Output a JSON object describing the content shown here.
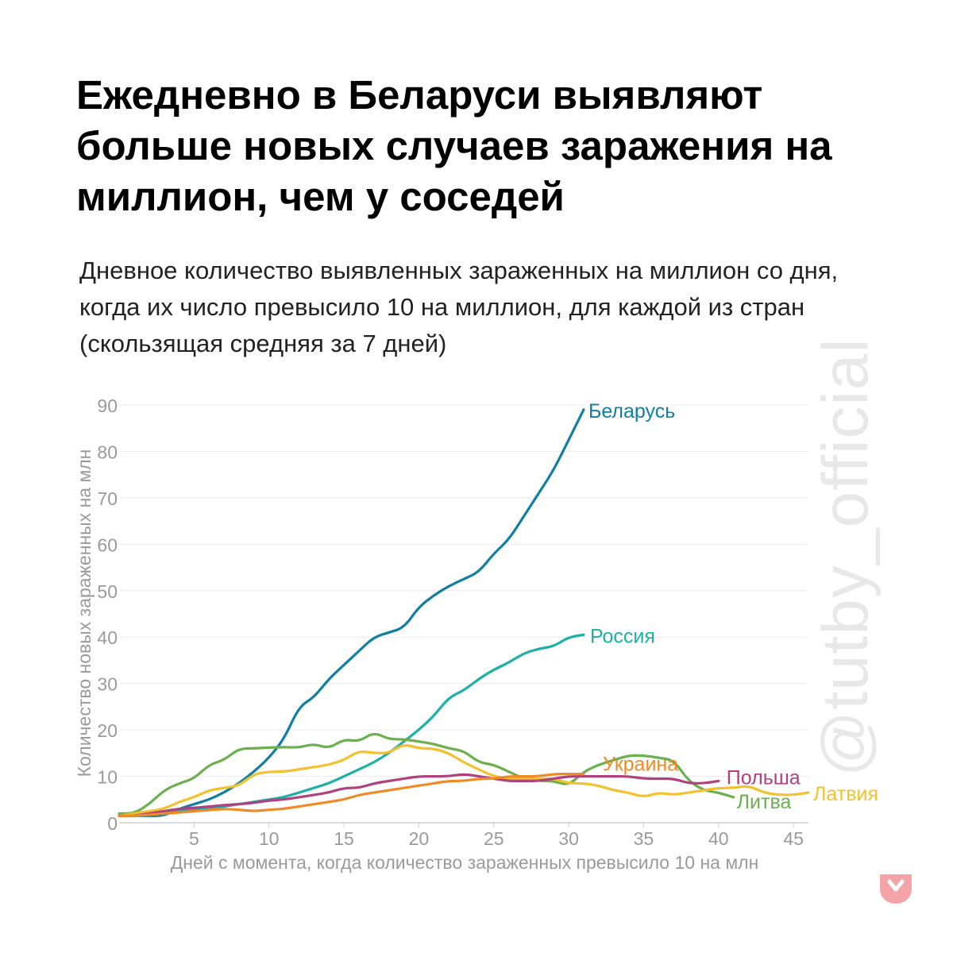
{
  "title": "Ежедневно в Беларуси выявляют больше новых случаев заражения на миллион, чем у соседей",
  "subtitle": "Дневное количество выявленных зараженных на миллион со дня, когда их число превысило 10 на миллион, для каждой из стран (скользящая средняя за 7 дней)",
  "watermark": "@tutby_official",
  "logo_icon": "tutby-logo-icon",
  "chart_data": {
    "type": "line",
    "xlabel": "Дней с момента, когда количество зараженных превысило 10 на млн",
    "ylabel": "Количество новых зараженных на млн",
    "xlim": [
      0,
      46
    ],
    "ylim": [
      0,
      90
    ],
    "xticks": [
      5,
      10,
      15,
      20,
      25,
      30,
      35,
      40,
      45
    ],
    "yticks": [
      0,
      10,
      20,
      30,
      40,
      50,
      60,
      70,
      80,
      90
    ],
    "grid": true,
    "legend": "direct labels at line ends",
    "series": [
      {
        "name": "Беларусь",
        "color": "#0f7fa3",
        "x": [
          0,
          1,
          2,
          3,
          4,
          5,
          6,
          7,
          8,
          9,
          10,
          11,
          12,
          13,
          14,
          15,
          16,
          17,
          18,
          19,
          20,
          21,
          22,
          23,
          24,
          25,
          26,
          27,
          28,
          29,
          30,
          31
        ],
        "y": [
          1.5,
          1.5,
          1.5,
          1.5,
          3,
          4,
          5,
          6.5,
          8.5,
          11,
          14,
          18,
          25,
          27,
          31,
          34,
          37,
          40,
          41,
          42,
          46.5,
          49,
          51,
          52.5,
          54,
          58,
          61,
          66,
          71,
          76,
          82.5,
          89
        ]
      },
      {
        "name": "Россия",
        "color": "#1db0a6",
        "x": [
          0,
          1,
          2,
          3,
          4,
          5,
          6,
          7,
          8,
          9,
          10,
          11,
          12,
          13,
          14,
          15,
          16,
          17,
          18,
          19,
          20,
          21,
          22,
          23,
          24,
          25,
          26,
          27,
          28,
          29,
          30,
          31
        ],
        "y": [
          1.5,
          2,
          2,
          2.5,
          2.5,
          3,
          3,
          3.5,
          4,
          4.5,
          5,
          5.5,
          6.5,
          7.5,
          8.5,
          10,
          11.5,
          13,
          15,
          17.5,
          20,
          23,
          27,
          28.5,
          31,
          33,
          34.5,
          36.5,
          37.5,
          38,
          40,
          40.5
        ]
      },
      {
        "name": "Литва",
        "color": "#6ab04c",
        "x": [
          0,
          1,
          2,
          3,
          4,
          5,
          6,
          7,
          8,
          9,
          10,
          11,
          12,
          13,
          14,
          15,
          16,
          17,
          18,
          19,
          20,
          21,
          22,
          23,
          24,
          25,
          26,
          27,
          28,
          29,
          30,
          31,
          32,
          33,
          34,
          35,
          36,
          37,
          38,
          39,
          40,
          41
        ],
        "y": [
          2,
          2,
          4,
          7,
          8.5,
          9.5,
          12.5,
          13.5,
          16,
          16,
          16.2,
          16.3,
          16.2,
          17,
          16,
          18,
          17.5,
          19.5,
          18,
          18,
          17.5,
          17,
          16,
          15.5,
          13,
          12.5,
          11,
          9.5,
          9,
          9,
          8,
          11,
          12.5,
          13.5,
          14.5,
          14.5,
          14,
          13.5,
          9,
          7,
          6.5,
          5.5
        ]
      },
      {
        "name": "Латвия",
        "color": "#f2c12e",
        "x": [
          0,
          1,
          2,
          3,
          4,
          5,
          6,
          7,
          8,
          9,
          10,
          11,
          12,
          13,
          14,
          15,
          16,
          17,
          18,
          19,
          20,
          21,
          22,
          23,
          24,
          25,
          26,
          27,
          28,
          29,
          30,
          31,
          32,
          33,
          34,
          35,
          36,
          37,
          38,
          39,
          40,
          41,
          42,
          43,
          44,
          45,
          46
        ],
        "y": [
          1.5,
          2,
          2.5,
          3,
          4.5,
          5.5,
          7,
          7.5,
          8,
          10.5,
          11,
          11,
          11.5,
          12,
          12.5,
          13.5,
          15.5,
          15,
          15,
          17,
          16,
          16,
          15,
          13,
          11.5,
          10,
          9.5,
          9.5,
          9.5,
          9.5,
          8.5,
          8.5,
          8,
          7,
          6.5,
          5.5,
          6.5,
          6,
          6.5,
          7,
          7.5,
          7.5,
          8,
          6.5,
          6,
          6,
          6.5
        ]
      },
      {
        "name": "Польша",
        "color": "#b0417e",
        "x": [
          0,
          1,
          2,
          3,
          4,
          5,
          6,
          7,
          8,
          9,
          10,
          11,
          12,
          13,
          14,
          15,
          16,
          17,
          18,
          19,
          20,
          21,
          22,
          23,
          24,
          25,
          26,
          27,
          28,
          29,
          30,
          31,
          32,
          33,
          34,
          35,
          36,
          37,
          38,
          39,
          40
        ],
        "y": [
          1.5,
          1.5,
          2,
          2.5,
          3,
          3.2,
          3.5,
          3.8,
          4,
          4.3,
          4.8,
          5,
          5.5,
          6,
          6.5,
          7.5,
          7.5,
          8.5,
          9,
          9.5,
          10,
          10,
          10,
          10.5,
          10,
          9.5,
          9,
          9,
          9,
          9.5,
          10,
          10,
          10,
          10,
          10,
          9.5,
          9.5,
          9.5,
          8.5,
          8.5,
          9
        ]
      },
      {
        "name": "Украина",
        "color": "#f08a24",
        "x": [
          0,
          1,
          2,
          3,
          4,
          5,
          6,
          7,
          8,
          9,
          10,
          11,
          12,
          13,
          14,
          15,
          16,
          17,
          18,
          19,
          20,
          21,
          22,
          23,
          24,
          25,
          26,
          27,
          28,
          29,
          30,
          31
        ],
        "y": [
          1.5,
          1.5,
          1.7,
          2,
          2.2,
          2.5,
          2.7,
          3,
          2.8,
          2.5,
          2.8,
          3,
          3.5,
          4,
          4.5,
          5,
          6,
          6.5,
          7,
          7.5,
          8,
          8.5,
          9,
          9,
          9.5,
          9.5,
          10,
          10,
          10,
          10.5,
          10.5,
          10.5
        ]
      }
    ]
  }
}
